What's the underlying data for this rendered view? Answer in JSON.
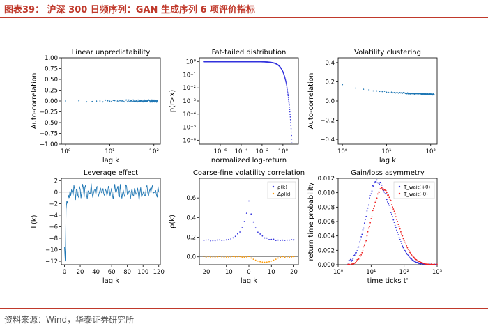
{
  "header": {
    "title": "图表39：  沪深 300 日频序列：GAN 生成序列 6 项评价指标"
  },
  "footer": {
    "source": "资料来源：Wind，华泰证券研究所"
  },
  "colors": {
    "accent": "#c0392b",
    "blue": "#1f77b4",
    "dotblue": "#3333dd",
    "orange": "#ff9900",
    "red": "#ee2222"
  },
  "chart_data": [
    {
      "type": "scatter",
      "title": "Linear unpredictability",
      "xlabel": "lag k",
      "ylabel": "Auto-correlation",
      "xscale": "log",
      "xlim": [
        0.8,
        140
      ],
      "ylim": [
        -1.0,
        1.0
      ],
      "xticks": [
        1,
        10,
        100
      ],
      "xtick_labels": [
        "10⁰",
        "10¹",
        "10²"
      ],
      "yticks": [
        -1.0,
        -0.75,
        -0.5,
        -0.25,
        0.0,
        0.25,
        0.5,
        0.75,
        1.0
      ],
      "ytick_labels": [
        "−1.00",
        "−0.75",
        "−0.50",
        "−0.25",
        "0.00",
        "0.25",
        "0.50",
        "0.75",
        "1.00"
      ],
      "series": [
        {
          "description": "autocorrelation of returns ≈ 0 for lags 1–120",
          "k_range": [
            1,
            120
          ],
          "value": 0.0
        }
      ]
    },
    {
      "type": "line",
      "title": "Fat-tailed distribution",
      "xlabel": "normalized log-return",
      "ylabel": "p(r>x)",
      "xscale": "log",
      "yscale": "log",
      "xlim": [
        1e-08,
        30
      ],
      "ylim": [
        5e-07,
        2
      ],
      "xticks": [
        1e-06,
        0.0001,
        0.01,
        1
      ],
      "xtick_labels": [
        "10⁻⁶",
        "10⁻⁴",
        "10⁻²",
        "10⁰"
      ],
      "yticks": [
        1,
        0.1,
        0.01,
        0.001,
        0.0001,
        1e-05,
        1e-06
      ],
      "ytick_labels": [
        "10⁰",
        "10⁻¹",
        "10⁻²",
        "10⁻³",
        "10⁻⁴",
        "10⁻⁵",
        "10⁻⁶"
      ],
      "series": [
        {
          "description": "complementary CDF ≈ 1 until x ≈ 0.1, then falls steeply to ~1e-6 near x ≈ 8"
        }
      ]
    },
    {
      "type": "scatter",
      "title": "Volatility clustering",
      "xlabel": "lag k",
      "ylabel": "Auto-correlation",
      "xscale": "log",
      "xlim": [
        0.8,
        140
      ],
      "ylim": [
        -0.45,
        0.45
      ],
      "xticks": [
        1,
        10,
        100
      ],
      "xtick_labels": [
        "10⁰",
        "10¹",
        "10²"
      ],
      "yticks": [
        -0.4,
        -0.2,
        0.0,
        0.2,
        0.4
      ],
      "ytick_labels": [
        "−0.4",
        "−0.2",
        "0.0",
        "0.2",
        "0.4"
      ],
      "series": [
        {
          "description": "autocorrelation of absolute returns decaying from ≈0.17 at k=1 to ≈0.06 at k=120"
        }
      ]
    },
    {
      "type": "line",
      "title": "Leverage effect",
      "xlabel": "lag k",
      "ylabel": "L(k)",
      "xlim": [
        -4,
        122
      ],
      "ylim": [
        -12.6,
        2.4
      ],
      "xticks": [
        0,
        20,
        40,
        60,
        80,
        100,
        120
      ],
      "xtick_labels": [
        "0",
        "20",
        "40",
        "60",
        "80",
        "100",
        "120"
      ],
      "yticks": [
        2,
        0,
        -2,
        -4,
        -6,
        -8,
        -10,
        -12
      ],
      "ytick_labels": [
        "2",
        "0",
        "−2",
        "−4",
        "−6",
        "−8",
        "−10",
        "−12"
      ],
      "series": [
        {
          "description": "L(k): ≈ -9.5 at k=0, -12 at k=1, recovering to ≈ 0 by k≈10 and fluctuating between -1 and 1.5"
        }
      ]
    },
    {
      "type": "scatter",
      "title": "Coarse-fine volatility correlation",
      "xlabel": "lag k",
      "ylabel": "ρ(k)",
      "xlim": [
        -22,
        22
      ],
      "ylim": [
        -0.08,
        0.8
      ],
      "xticks": [
        -20,
        -10,
        0,
        10,
        20
      ],
      "xtick_labels": [
        "−20",
        "−10",
        "0",
        "10",
        "20"
      ],
      "yticks": [
        0.0,
        0.2,
        0.4,
        0.6
      ],
      "ytick_labels": [
        "0.0",
        "0.2",
        "0.4",
        "0.6"
      ],
      "legend": {
        "position": "top-right",
        "entries": [
          "ρ(k)",
          "Δρ(k)"
        ]
      },
      "series": [
        {
          "name": "ρ(k)",
          "description": "≈0.17 baseline, symmetric peak ≈0.57 at k=0"
        },
        {
          "name": "Δρ(k)",
          "description": "≈0 for k<0, small negative dip to ≈ -0.06 for k between 0 and 10"
        }
      ]
    },
    {
      "type": "scatter",
      "title": "Gain/loss asymmetry",
      "xlabel": "time ticks t'",
      "ylabel": "return time probability",
      "xscale": "log",
      "xlim": [
        1,
        1000
      ],
      "ylim": [
        0,
        0.012
      ],
      "xticks": [
        1,
        10,
        100,
        1000
      ],
      "xtick_labels": [
        "10⁰",
        "10¹",
        "10²",
        "10³"
      ],
      "yticks": [
        0,
        0.002,
        0.004,
        0.006,
        0.008,
        0.01,
        0.012
      ],
      "ytick_labels": [
        "0.000",
        "0.002",
        "0.004",
        "0.006",
        "0.008",
        "0.010",
        "0.012"
      ],
      "legend": {
        "position": "top-right",
        "entries": [
          "T_wait(+θ)",
          "T_wait(-θ)"
        ]
      },
      "series": [
        {
          "name": "T_wait(+θ)",
          "description": "peaks ≈0.0116 near t'≈15, decaying to 0 by t'≈1000"
        },
        {
          "name": "T_wait(-θ)",
          "description": "peaks ≈0.0105 near t'≈20, decaying to 0 by t'≈1000"
        }
      ]
    }
  ]
}
